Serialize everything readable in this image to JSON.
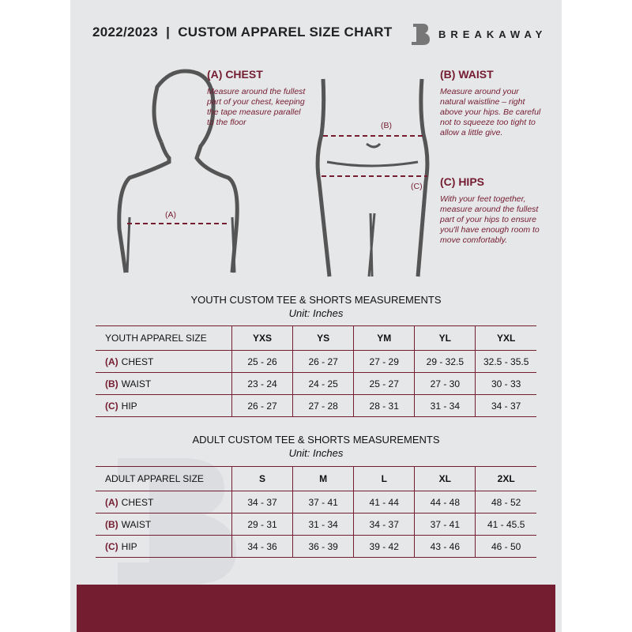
{
  "header": {
    "title": "2022/2023  |  CUSTOM APPAREL SIZE CHART",
    "brand": "BREAKAWAY"
  },
  "measures": {
    "chest": {
      "title": "(A) CHEST",
      "desc": "Measure around the fullest part of your chest, keeping the tape measure parallel to the floor",
      "marker": "(A)"
    },
    "waist": {
      "title": "(B) WAIST",
      "desc": "Measure around your natural waistline – right above your hips. Be careful not to squeeze too tight to allow a little give.",
      "marker": "(B)"
    },
    "hips": {
      "title": "(C) HIPS",
      "desc": "With your feet together, measure around the fullest part of your hips to ensure you'll have enough room to move comfortably.",
      "marker": "(C)"
    }
  },
  "youth": {
    "title": "YOUTH CUSTOM TEE & SHORTS MEASUREMENTS",
    "unit": "Unit: Inches",
    "header": [
      "YOUTH APPAREL SIZE",
      "YXS",
      "YS",
      "YM",
      "YL",
      "YXL"
    ],
    "rows": [
      {
        "code": "(A)",
        "label": "CHEST",
        "values": [
          "25 - 26",
          "26 - 27",
          "27 - 29",
          "29 - 32.5",
          "32.5 - 35.5"
        ]
      },
      {
        "code": "(B)",
        "label": "WAIST",
        "values": [
          "23 - 24",
          "24 - 25",
          "25 - 27",
          "27 - 30",
          "30 - 33"
        ]
      },
      {
        "code": "(C)",
        "label": "HIP",
        "values": [
          "26 - 27",
          "27 - 28",
          "28 - 31",
          "31 - 34",
          "34 - 37"
        ]
      }
    ]
  },
  "adult": {
    "title": "ADULT CUSTOM TEE & SHORTS MEASUREMENTS",
    "unit": "Unit: Inches",
    "header": [
      "ADULT APPAREL SIZE",
      "S",
      "M",
      "L",
      "XL",
      "2XL"
    ],
    "rows": [
      {
        "code": "(A)",
        "label": "CHEST",
        "values": [
          "34 - 37",
          "37 - 41",
          "41 - 44",
          "44 - 48",
          "48 - 52"
        ]
      },
      {
        "code": "(B)",
        "label": "WAIST",
        "values": [
          "29 - 31",
          "31 - 34",
          "34 - 37",
          "37 - 41",
          "41 - 45.5"
        ]
      },
      {
        "code": "(C)",
        "label": "HIP",
        "values": [
          "34 - 36",
          "36 - 39",
          "39 - 42",
          "43 - 46",
          "46 - 50"
        ]
      }
    ]
  },
  "colors": {
    "accent": "#741c30",
    "background": "#e6e7e9"
  }
}
